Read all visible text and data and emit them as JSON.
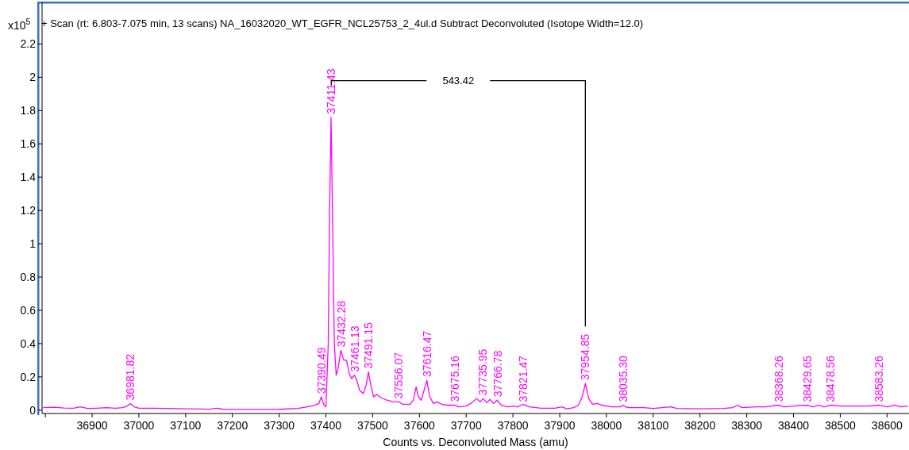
{
  "chart_data": {
    "type": "line",
    "title": "+ Scan (rt: 6.803-7.075 min, 13 scans) NA_16032020_WT_EGFR_NCL25753_2_4ul.d  Subtract Deconvoluted (Isotope Width=12.0)",
    "xlabel": "Counts vs. Deconvoluted Mass (amu)",
    "ylabel": "x10$^{5}$",
    "xlim": [
      36793,
      38647
    ],
    "xticks": [
      {
        "value": 36800,
        "label": null
      },
      36900,
      37000,
      37100,
      37200,
      37300,
      37400,
      37500,
      37600,
      37700,
      37800,
      37900,
      38000,
      38100,
      38200,
      38300,
      38400,
      38500,
      38600
    ],
    "ylim": [
      -0.02,
      2.45
    ],
    "yticks": [
      0,
      0.2,
      0.4,
      0.6,
      0.8,
      1,
      1.2,
      1.4,
      1.6,
      1.8,
      2,
      2.2
    ],
    "grid": false,
    "marker": "none",
    "line_style": "solid",
    "series": [
      {
        "color": "#ff00ff",
        "x": [
          36795,
          36820,
          36840,
          36860,
          36875,
          36890,
          36910,
          36930,
          36950,
          36965,
          36975,
          36982,
          36990,
          37000,
          37030,
          37060,
          37100,
          37150,
          37168,
          37180,
          37250,
          37300,
          37340,
          37360,
          37375,
          37385,
          37390,
          37396,
          37400,
          37405,
          37408,
          37411,
          37414,
          37418,
          37422,
          37426,
          37432,
          37438,
          37444,
          37450,
          37455,
          37461,
          37466,
          37472,
          37480,
          37486,
          37491,
          37496,
          37502,
          37509,
          37515,
          37530,
          37545,
          37556,
          37565,
          37580,
          37587,
          37593,
          37598,
          37604,
          37610,
          37616,
          37622,
          37630,
          37638,
          37648,
          37660,
          37675,
          37685,
          37700,
          37710,
          37722,
          37730,
          37736,
          37744,
          37751,
          37758,
          37766,
          37775,
          37790,
          37800,
          37810,
          37821,
          37835,
          37860,
          37890,
          37905,
          37915,
          37930,
          37940,
          37948,
          37955,
          37962,
          37970,
          37980,
          37990,
          38010,
          38030,
          38035,
          38045,
          38080,
          38100,
          38138,
          38150,
          38200,
          38250,
          38270,
          38280,
          38290,
          38320,
          38340,
          38368,
          38380,
          38400,
          38430,
          38440,
          38455,
          38465,
          38479,
          38500,
          38560,
          38583,
          38600,
          38615,
          38630,
          38645
        ],
        "values": [
          0.015,
          0.018,
          0.013,
          0.012,
          0.02,
          0.01,
          0.012,
          0.015,
          0.012,
          0.015,
          0.025,
          0.04,
          0.02,
          0.012,
          0.012,
          0.01,
          0.008,
          0.006,
          0.012,
          0.005,
          0.004,
          0.005,
          0.01,
          0.02,
          0.028,
          0.04,
          0.08,
          0.03,
          0.02,
          0.4,
          1.2,
          1.76,
          1.2,
          0.4,
          0.21,
          0.25,
          0.36,
          0.3,
          0.3,
          0.22,
          0.19,
          0.21,
          0.18,
          0.12,
          0.1,
          0.15,
          0.23,
          0.15,
          0.08,
          0.095,
          0.08,
          0.06,
          0.05,
          0.05,
          0.035,
          0.035,
          0.06,
          0.14,
          0.08,
          0.06,
          0.12,
          0.18,
          0.08,
          0.04,
          0.05,
          0.035,
          0.03,
          0.03,
          0.02,
          0.025,
          0.04,
          0.07,
          0.05,
          0.07,
          0.045,
          0.065,
          0.04,
          0.06,
          0.03,
          0.02,
          0.025,
          0.02,
          0.035,
          0.02,
          0.012,
          0.012,
          0.02,
          0.008,
          0.015,
          0.03,
          0.08,
          0.16,
          0.07,
          0.035,
          0.04,
          0.03,
          0.02,
          0.02,
          0.03,
          0.015,
          0.015,
          0.01,
          0.02,
          0.01,
          0.008,
          0.01,
          0.015,
          0.03,
          0.015,
          0.02,
          0.02,
          0.03,
          0.02,
          0.025,
          0.03,
          0.02,
          0.03,
          0.02,
          0.03,
          0.025,
          0.025,
          0.03,
          0.02,
          0.03,
          0.02,
          0.025
        ]
      }
    ],
    "annotations": [
      {
        "text": "36981.82",
        "x": 36981.82,
        "y": 0.04
      },
      {
        "text": "37390.49",
        "x": 37390.49,
        "y": 0.08
      },
      {
        "text": "37411.43",
        "x": 37411.43,
        "y": 1.76
      },
      {
        "text": "37432.28",
        "x": 37432.28,
        "y": 0.36
      },
      {
        "text": "37461.13",
        "x": 37461.13,
        "y": 0.21
      },
      {
        "text": "37491.15",
        "x": 37491.15,
        "y": 0.23
      },
      {
        "text": "37556.07",
        "x": 37556.07,
        "y": 0.05
      },
      {
        "text": "37616.47",
        "x": 37616.47,
        "y": 0.18
      },
      {
        "text": "37675.16",
        "x": 37675.16,
        "y": 0.03
      },
      {
        "text": "37735.95",
        "x": 37735.95,
        "y": 0.07
      },
      {
        "text": "37766.78",
        "x": 37766.78,
        "y": 0.06
      },
      {
        "text": "37821.47",
        "x": 37821.47,
        "y": 0.03
      },
      {
        "text": "37954.85",
        "x": 37954.85,
        "y": 0.16
      },
      {
        "text": "38035.30",
        "x": 38035.3,
        "y": 0.03
      },
      {
        "text": "38368.26",
        "x": 38368.26,
        "y": 0.03
      },
      {
        "text": "38429.65",
        "x": 38429.65,
        "y": 0.03
      },
      {
        "text": "38478.56",
        "x": 38478.56,
        "y": 0.03
      },
      {
        "text": "38583.26",
        "x": 38583.26,
        "y": 0.03
      },
      "543.42"
    ]
  }
}
